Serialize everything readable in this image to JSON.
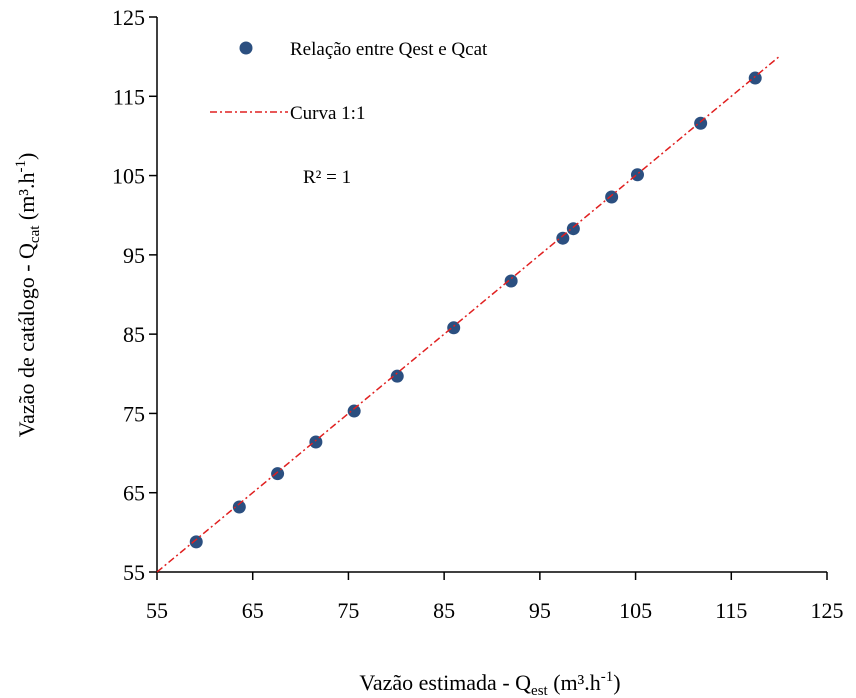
{
  "chart_data": {
    "type": "scatter",
    "xlabel": {
      "text": "Vazão estimada - Q",
      "sub": "est",
      "unit": " (m³.h",
      "sup": "-1",
      "end": ")"
    },
    "ylabel": {
      "text": "Vazão de catálogo - Q",
      "sub": "cat",
      "unit": " (m³.h",
      "sup": "-1",
      "end": ")"
    },
    "annotation": "R² = 1",
    "xlim": [
      55,
      125
    ],
    "ylim": [
      55,
      125
    ],
    "xticks": [
      55,
      65,
      75,
      85,
      95,
      105,
      115,
      125
    ],
    "yticks": [
      55,
      65,
      75,
      85,
      95,
      105,
      115,
      125
    ],
    "series": [
      {
        "name": "Relação entre Qest e Qcat",
        "color": "#2b4f80",
        "x": [
          59.1,
          63.6,
          67.6,
          71.6,
          75.6,
          80.1,
          86.0,
          92.0,
          97.4,
          98.5,
          102.5,
          105.2,
          111.8,
          117.5
        ],
        "values": [
          58.8,
          63.2,
          67.4,
          71.4,
          75.3,
          79.7,
          85.8,
          91.7,
          97.1,
          98.3,
          102.3,
          105.1,
          111.6,
          117.3
        ]
      },
      {
        "name": "Curva 1:1",
        "color": "#e02020",
        "line": true,
        "x": [
          55,
          120
        ],
        "values": [
          55,
          120
        ]
      }
    ]
  }
}
